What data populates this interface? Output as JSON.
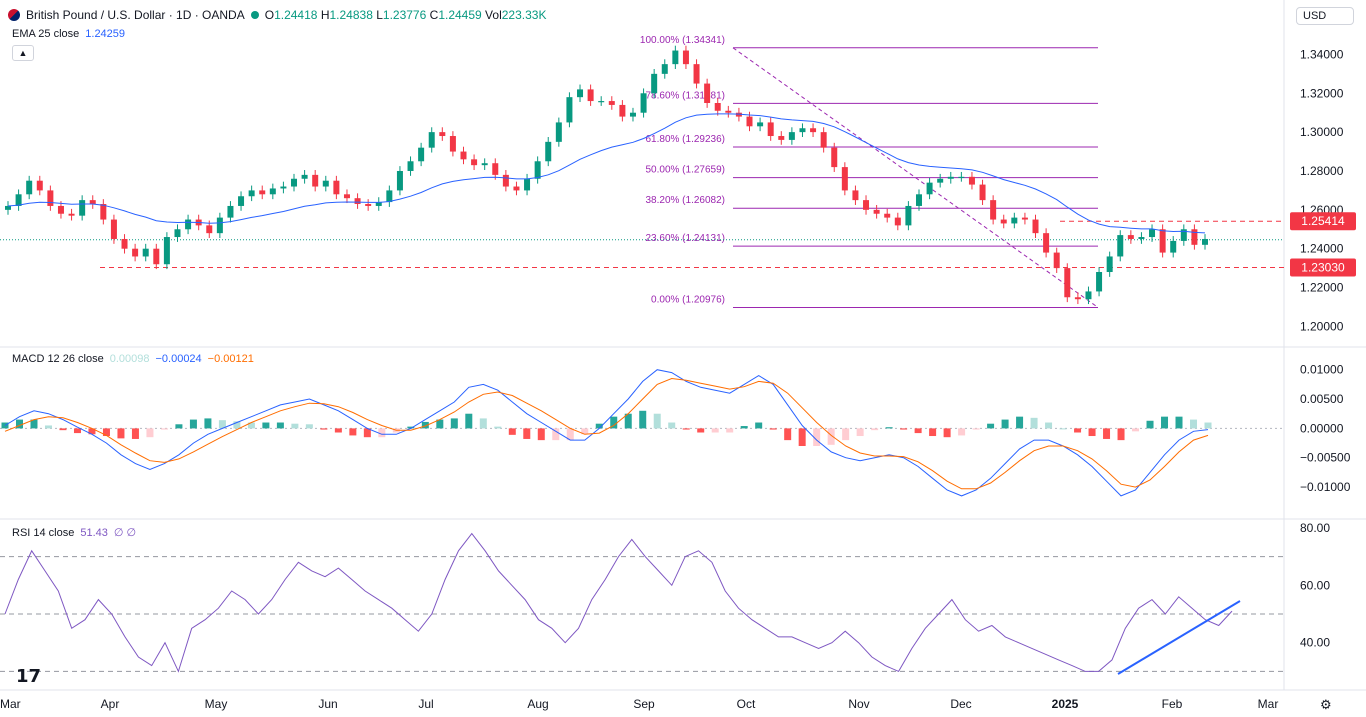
{
  "header": {
    "symbol_title": "British Pound / U.S. Dollar · 1D · OANDA",
    "open_label": "O",
    "open_value": "1.24418",
    "high_label": "H",
    "high_value": "1.24838",
    "low_label": "L",
    "low_value": "1.23776",
    "close_label": "C",
    "close_value": "1.24459",
    "vol_label": "Vol",
    "vol_value": "223.33K",
    "currency": "USD"
  },
  "ema": {
    "label": "EMA 25 close",
    "value": "1.24259"
  },
  "macd": {
    "label": "MACD 12 26 close",
    "hist_value": "0.00098",
    "macd_value": "−0.00024",
    "signal_value": "−0.00121"
  },
  "rsi": {
    "label": "RSI 14 close",
    "value": "51.43",
    "extra": "∅ ∅"
  },
  "logo": "17",
  "colors": {
    "up": "#089981",
    "down": "#f23645",
    "ema": "#2962ff",
    "macd_line": "#2962ff",
    "signal": "#ff6d00",
    "fib": "#9c27b0",
    "rsi": "#7e57c2",
    "trend": "#2962ff"
  },
  "chart_data": [
    {
      "type": "candlestick",
      "title": "British Pound / U.S. Dollar · 1D · OANDA",
      "x_labels": [
        "Mar",
        "Apr",
        "May",
        "Jun",
        "Jul",
        "Aug",
        "Sep",
        "Oct",
        "Nov",
        "Dec",
        "2025",
        "Feb",
        "Mar"
      ],
      "y_ticks": [
        "1.34000",
        "1.32000",
        "1.30000",
        "1.28000",
        "1.26000",
        "1.24000",
        "1.22000",
        "1.20000"
      ],
      "ylim": [
        1.193,
        1.35
      ],
      "price_lines": [
        {
          "label": "1.25414",
          "value": 1.25414
        },
        {
          "label": "1.23030",
          "value": 1.2303
        }
      ],
      "fibonacci": [
        {
          "label": "100.00% (1.34341)",
          "value": 1.34341
        },
        {
          "label": "78.60% (1.31481)",
          "value": 1.31481
        },
        {
          "label": "61.80% (1.29236)",
          "value": 1.29236
        },
        {
          "label": "50.00% (1.27659)",
          "value": 1.27659
        },
        {
          "label": "38.20% (1.26082)",
          "value": 1.26082
        },
        {
          "label": "23.60% (1.24131)",
          "value": 1.24131
        },
        {
          "label": "0.00% (1.20976)",
          "value": 1.20976
        }
      ],
      "last_close": 1.24459,
      "close_series": [
        1.262,
        1.268,
        1.275,
        1.27,
        1.262,
        1.258,
        1.257,
        1.265,
        1.263,
        1.255,
        1.245,
        1.24,
        1.236,
        1.24,
        1.232,
        1.246,
        1.25,
        1.255,
        1.252,
        1.248,
        1.256,
        1.262,
        1.267,
        1.27,
        1.268,
        1.271,
        1.272,
        1.276,
        1.278,
        1.272,
        1.275,
        1.268,
        1.266,
        1.263,
        1.262,
        1.264,
        1.27,
        1.28,
        1.285,
        1.292,
        1.3,
        1.298,
        1.29,
        1.286,
        1.283,
        1.284,
        1.278,
        1.272,
        1.27,
        1.276,
        1.285,
        1.295,
        1.305,
        1.318,
        1.322,
        1.316,
        1.316,
        1.314,
        1.308,
        1.31,
        1.32,
        1.33,
        1.335,
        1.342,
        1.335,
        1.325,
        1.315,
        1.311,
        1.31,
        1.308,
        1.303,
        1.305,
        1.298,
        1.296,
        1.3,
        1.302,
        1.3,
        1.292,
        1.282,
        1.27,
        1.265,
        1.26,
        1.258,
        1.256,
        1.252,
        1.262,
        1.268,
        1.274,
        1.276,
        1.277,
        1.277,
        1.273,
        1.265,
        1.255,
        1.253,
        1.256,
        1.255,
        1.248,
        1.238,
        1.23,
        1.215,
        1.214,
        1.218,
        1.228,
        1.236,
        1.247,
        1.245,
        1.246,
        1.25,
        1.238,
        1.244,
        1.25,
        1.242,
        1.245
      ]
    },
    {
      "type": "line",
      "title": "MACD 12 26 close",
      "y_ticks": [
        "0.01000",
        "0.00500",
        "0.00000",
        "−0.00500",
        "−0.01000"
      ],
      "ylim": [
        -0.0122,
        0.0108
      ],
      "series": [
        {
          "name": "MACD",
          "values": [
            0.0005,
            0.002,
            0.003,
            0.0025,
            0.0015,
            0.0002,
            -0.001,
            -0.0025,
            -0.0045,
            -0.006,
            -0.007,
            -0.006,
            -0.0045,
            -0.0025,
            -0.001,
            0.0,
            0.001,
            0.002,
            0.003,
            0.004,
            0.0045,
            0.005,
            0.004,
            0.003,
            0.0015,
            0.0,
            -0.001,
            -0.001,
            0.0,
            0.0015,
            0.003,
            0.0045,
            0.007,
            0.0075,
            0.0065,
            0.0045,
            0.0025,
            0.001,
            -0.0005,
            -0.002,
            -0.002,
            0.0,
            0.0025,
            0.005,
            0.008,
            0.01,
            0.0095,
            0.008,
            0.007,
            0.0065,
            0.006,
            0.0075,
            0.009,
            0.0075,
            0.004,
            0.0005,
            -0.002,
            -0.004,
            -0.005,
            -0.0055,
            -0.005,
            -0.0045,
            -0.005,
            -0.0065,
            -0.0085,
            -0.0105,
            -0.0115,
            -0.0105,
            -0.0085,
            -0.006,
            -0.0035,
            -0.002,
            -0.002,
            -0.003,
            -0.0045,
            -0.0065,
            -0.009,
            -0.0115,
            -0.0105,
            -0.0075,
            -0.0045,
            -0.002,
            -0.0005,
            -0.0002
          ]
        },
        {
          "name": "Signal",
          "values": [
            -0.0005,
            0.0005,
            0.0015,
            0.002,
            0.0018,
            0.001,
            0.0,
            -0.0012,
            -0.0028,
            -0.0042,
            -0.0055,
            -0.0058,
            -0.0052,
            -0.004,
            -0.0027,
            -0.0014,
            -0.0002,
            0.001,
            0.002,
            0.003,
            0.0037,
            0.0043,
            0.0042,
            0.0037,
            0.0027,
            0.0015,
            0.0005,
            -0.0003,
            -0.0003,
            0.0004,
            0.0015,
            0.0028,
            0.0045,
            0.0058,
            0.0062,
            0.0056,
            0.0043,
            0.003,
            0.0015,
            0.0,
            -0.001,
            -0.0008,
            0.0005,
            0.0025,
            0.005,
            0.0075,
            0.0085,
            0.0082,
            0.0077,
            0.0072,
            0.0067,
            0.0071,
            0.008,
            0.0077,
            0.006,
            0.0035,
            0.001,
            -0.0012,
            -0.003,
            -0.0042,
            -0.0047,
            -0.0047,
            -0.0048,
            -0.0057,
            -0.0072,
            -0.009,
            -0.0103,
            -0.0103,
            -0.0093,
            -0.0075,
            -0.0055,
            -0.0038,
            -0.003,
            -0.003,
            -0.0038,
            -0.0052,
            -0.0072,
            -0.0095,
            -0.01,
            -0.0088,
            -0.0065,
            -0.004,
            -0.002,
            -0.0012
          ]
        }
      ]
    },
    {
      "type": "line",
      "title": "RSI 14 close",
      "y_ticks": [
        "80.00",
        "60.00",
        "40.00"
      ],
      "ylim": [
        27,
        81
      ],
      "bands": [
        70,
        50,
        30
      ],
      "series": [
        {
          "name": "RSI",
          "values": [
            50,
            62,
            72,
            65,
            58,
            45,
            48,
            55,
            50,
            42,
            35,
            32,
            40,
            30,
            45,
            48,
            52,
            58,
            55,
            50,
            55,
            62,
            68,
            65,
            63,
            66,
            62,
            58,
            55,
            52,
            48,
            44,
            50,
            62,
            72,
            78,
            72,
            65,
            60,
            55,
            48,
            45,
            40,
            45,
            55,
            62,
            70,
            76,
            70,
            65,
            60,
            70,
            72,
            68,
            58,
            52,
            48,
            45,
            42,
            42,
            40,
            38,
            40,
            44,
            40,
            35,
            32,
            30,
            38,
            45,
            50,
            55,
            48,
            44,
            46,
            42,
            40,
            38,
            36,
            34,
            32,
            30,
            30,
            34,
            45,
            52,
            55,
            50,
            56,
            52,
            48,
            46,
            51
          ]
        }
      ],
      "trendline": [
        [
          1118,
          674
        ],
        [
          1240,
          601
        ]
      ]
    }
  ]
}
